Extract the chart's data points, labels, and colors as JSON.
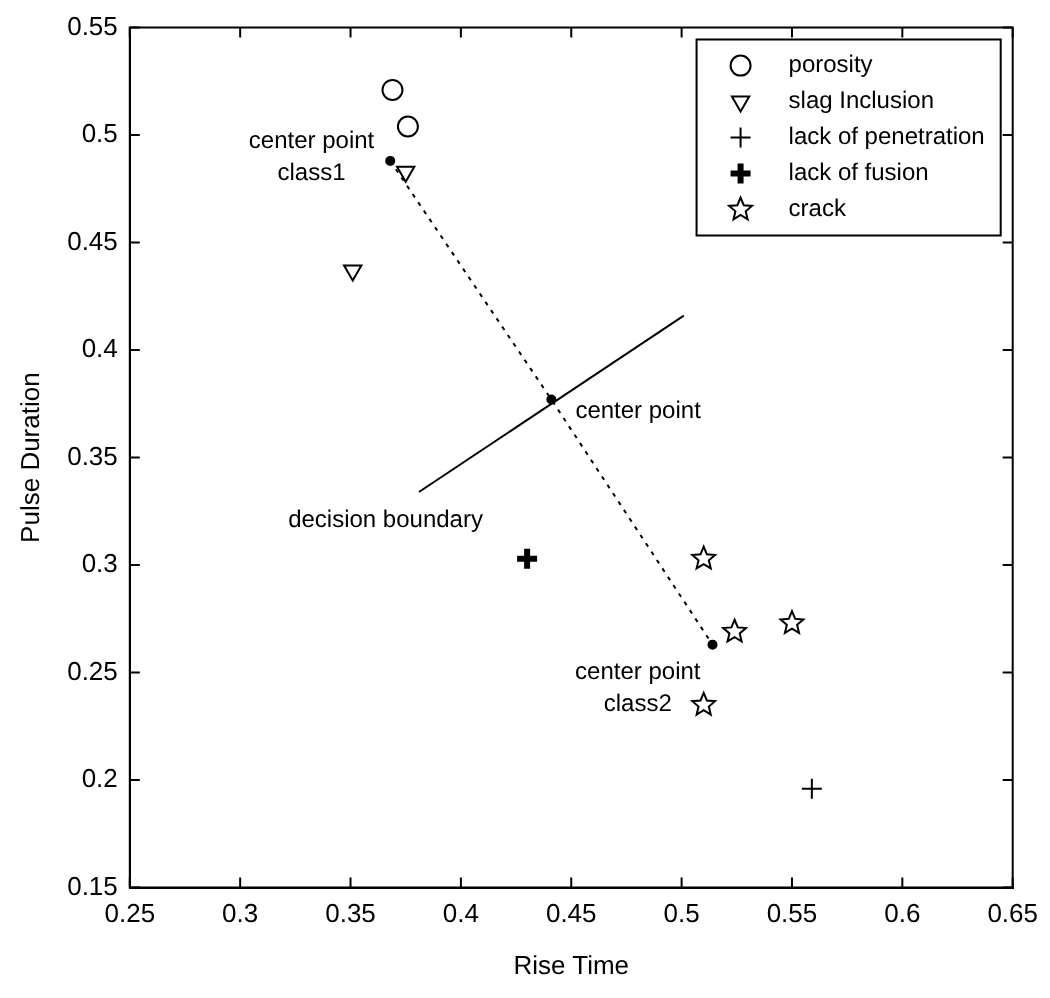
{
  "chart_data": {
    "type": "scatter",
    "xlabel": "Rise Time",
    "ylabel": "Pulse Duration",
    "xlim": [
      0.25,
      0.65
    ],
    "xticks": [
      0.25,
      0.3,
      0.35,
      0.4,
      0.45,
      0.5,
      0.55,
      0.6,
      0.65
    ],
    "ylim": [
      0.15,
      0.55
    ],
    "yticks": [
      0.15,
      0.2,
      0.25,
      0.3,
      0.35,
      0.4,
      0.45,
      0.5,
      0.55
    ],
    "grid": false,
    "legend": "top right",
    "series": [
      {
        "name": "porosity",
        "marker": "circle",
        "color": "#000000",
        "x": [
          0.369,
          0.376
        ],
        "values": [
          0.521,
          0.504
        ]
      },
      {
        "name": "slag Inclusion",
        "marker": "triangle",
        "color": "#000000",
        "x": [
          0.375,
          0.351
        ],
        "values": [
          0.483,
          0.437
        ]
      },
      {
        "name": "lack of penetration",
        "marker": "cross",
        "color": "#000000",
        "x": [
          0.559
        ],
        "values": [
          0.196
        ]
      },
      {
        "name": "lack of fusion",
        "marker": "cross",
        "color": "#000000",
        "x": [
          0.43
        ],
        "values": [
          0.303
        ]
      },
      {
        "name": "crack",
        "marker": "star",
        "color": "#000000",
        "x": [
          0.51,
          0.524,
          0.55,
          0.51
        ],
        "values": [
          0.303,
          0.269,
          0.273,
          0.235
        ]
      },
      {
        "type": "line",
        "line_style": "dotted",
        "marker": "circle",
        "color": "#000000",
        "x": [
          0.368,
          0.441,
          0.514
        ],
        "values": [
          0.488,
          0.377,
          0.263
        ]
      },
      {
        "type": "line",
        "line_style": "solid",
        "marker": "none",
        "color": "#000000",
        "x": [
          0.381,
          0.501
        ],
        "values": [
          0.334,
          0.416
        ]
      }
    ],
    "annotations": [
      {
        "text": "center point\nclass1",
        "x": 0.368,
        "y": 0.488
      },
      {
        "text": "center point",
        "x": 0.441,
        "y": 0.377
      },
      {
        "text": "decision boundary",
        "x": 0.381,
        "y": 0.334
      },
      {
        "text": "center point\nclass2",
        "x": 0.514,
        "y": 0.263
      }
    ]
  }
}
